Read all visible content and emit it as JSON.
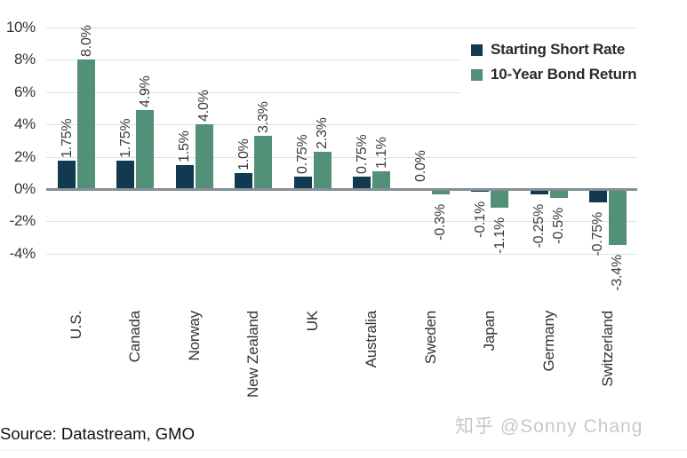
{
  "chart_data": {
    "type": "bar",
    "categories": [
      "U.S.",
      "Canada",
      "Norway",
      "New Zealand",
      "UK",
      "Australia",
      "Sweden",
      "Japan",
      "Germany",
      "Switzerland"
    ],
    "series": [
      {
        "name": "Starting Short Rate",
        "color": "#11394f",
        "values": [
          1.75,
          1.75,
          1.5,
          1.0,
          0.75,
          0.75,
          0.0,
          -0.1,
          -0.25,
          -0.75
        ],
        "labels": [
          "1.75%",
          "1.75%",
          "1.5%",
          "1.0%",
          "0.75%",
          "0.75%",
          "0.0%",
          "-0.1%",
          "-0.25%",
          "-0.75%"
        ]
      },
      {
        "name": "10-Year Bond Return",
        "color": "#539078",
        "values": [
          8.0,
          4.9,
          4.0,
          3.3,
          2.3,
          1.1,
          -0.3,
          -1.1,
          -0.5,
          -3.4
        ],
        "labels": [
          "8.0%",
          "4.9%",
          "4.0%",
          "3.3%",
          "2.3%",
          "1.1%",
          "-0.3%",
          "-1.1%",
          "-0.5%",
          "-3.4%"
        ]
      }
    ],
    "y_ticks": [
      "10%",
      "8%",
      "6%",
      "4%",
      "2%",
      "0%",
      "-2%",
      "-4%"
    ],
    "y_tick_values": [
      10,
      8,
      6,
      4,
      2,
      0,
      -2,
      -4
    ],
    "ylim": [
      -4.8,
      10.4
    ],
    "grid": true,
    "legend_position": "top-right",
    "title": ""
  },
  "footer": {
    "source": "Source: Datastream, GMO",
    "watermark": "知乎 @Sonny Chang"
  },
  "colors": {
    "series_short_rate": "#11394f",
    "series_bond_return": "#539078",
    "gridline": "#d7e4ea",
    "zero_axis": "#858f96",
    "watermark_text": "#c8c8c8"
  }
}
